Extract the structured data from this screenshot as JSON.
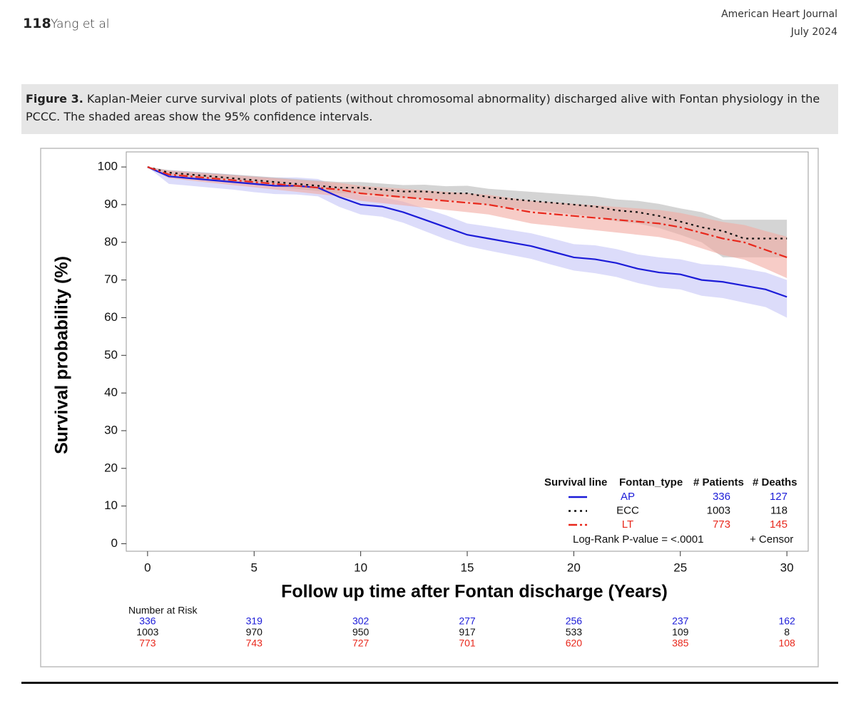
{
  "header": {
    "page_number": "118",
    "authors": "Yang et al",
    "journal": "American Heart Journal",
    "date": "July 2024"
  },
  "figure": {
    "label": "Figure 3.",
    "caption": "Kaplan-Meier curve survival plots of patients (without chromosomal abnormality) discharged alive with Fontan physiology in the PCCC. The shaded areas show the 95% confidence intervals."
  },
  "chart_data": {
    "type": "line",
    "xlabel": "Follow up time after Fontan discharge (Years)",
    "ylabel": "Survival probability (%)",
    "xlim": [
      -1,
      31
    ],
    "ylim": [
      -2,
      104
    ],
    "xticks": [
      0,
      5,
      10,
      15,
      20,
      25,
      30
    ],
    "yticks": [
      0,
      10,
      20,
      30,
      40,
      50,
      60,
      70,
      80,
      90,
      100
    ],
    "x": [
      0,
      1,
      2,
      3,
      4,
      5,
      6,
      7,
      8,
      9,
      10,
      11,
      12,
      13,
      14,
      15,
      16,
      17,
      18,
      19,
      20,
      21,
      22,
      23,
      24,
      25,
      26,
      27,
      28,
      29,
      30
    ],
    "legend_columns": [
      "Survival line",
      "Fontan_type",
      "# Patients",
      "# Deaths"
    ],
    "p_value_text": "Log-Rank P-value = <.0001",
    "censor_label": "+ Censor",
    "at_risk_title": "Number at Risk",
    "series": [
      {
        "name": "AP",
        "color": "#1c1cd8",
        "band_color": "#c4c4f6",
        "dash": "none",
        "patients": 336,
        "deaths": 127,
        "values": [
          100,
          97.5,
          97,
          96.5,
          96,
          95.5,
          95,
          95,
          94.5,
          92,
          90,
          89.5,
          88,
          86,
          84,
          82,
          81,
          80,
          79,
          77.5,
          76,
          75.5,
          74.5,
          73,
          72,
          71.5,
          70,
          69.5,
          68.5,
          67.5,
          65.5
        ],
        "upper": [
          100,
          99,
          98.8,
          98.4,
          98,
          97.5,
          97.2,
          97.2,
          96.8,
          94.5,
          92.5,
          92,
          90.8,
          89,
          87.2,
          85,
          84.2,
          83.3,
          82.4,
          81,
          79.5,
          79.2,
          78.2,
          76.8,
          76,
          75.5,
          74.2,
          73.8,
          73,
          72,
          70
        ],
        "lower": [
          100,
          95.5,
          95,
          94.5,
          94,
          93.3,
          92.8,
          92.7,
          92.2,
          89.4,
          87.4,
          86.8,
          85.2,
          83,
          80.8,
          79,
          77.8,
          76.7,
          75.6,
          74,
          72.5,
          71.8,
          70.8,
          69.2,
          68,
          67.5,
          65.8,
          65.2,
          64,
          62.8,
          60
        ],
        "at_risk": [
          336,
          319,
          302,
          277,
          256,
          237,
          162
        ]
      },
      {
        "name": "ECC",
        "color": "#111111",
        "band_color": "#b8b8b8",
        "dash": "3,5",
        "patients": 1003,
        "deaths": 118,
        "values": [
          100,
          98.5,
          98,
          97.5,
          97,
          96.5,
          96,
          95.5,
          95,
          94.5,
          94.5,
          94,
          93.5,
          93.5,
          93,
          93,
          92,
          91.5,
          91,
          90.5,
          90,
          89.5,
          88.5,
          88,
          87,
          85.5,
          84,
          83,
          81,
          81,
          81
        ],
        "upper": [
          100,
          99.2,
          98.8,
          98.4,
          98,
          97.6,
          97.2,
          96.8,
          96.4,
          96,
          96,
          95.6,
          95.2,
          95.3,
          94.9,
          95,
          94.2,
          93.8,
          93.4,
          93,
          92.6,
          92.2,
          91.4,
          91,
          90.2,
          89,
          88,
          86,
          86,
          86,
          86
        ],
        "lower": [
          100,
          97.8,
          97.2,
          96.6,
          96,
          95.4,
          94.8,
          94.2,
          93.6,
          93,
          93,
          92.4,
          91.8,
          91.7,
          91.1,
          91,
          89.8,
          89.2,
          88.6,
          88,
          87.4,
          86.8,
          85.6,
          85,
          83.8,
          82,
          80,
          76,
          76,
          76,
          76
        ],
        "at_risk": [
          1003,
          970,
          950,
          917,
          533,
          109,
          8
        ]
      },
      {
        "name": "LT",
        "color": "#e8281c",
        "band_color": "#f2aaa2",
        "dash": "12,4,3,4",
        "patients": 773,
        "deaths": 145,
        "values": [
          100,
          98,
          97.5,
          97,
          96.5,
          96,
          95.5,
          95,
          94.5,
          94,
          93,
          92.5,
          92,
          91.5,
          91,
          90.5,
          90,
          89,
          88,
          87.5,
          87,
          86.5,
          86,
          85.5,
          85,
          84,
          82.5,
          81,
          80,
          78,
          76
        ],
        "upper": [
          100,
          99,
          98.6,
          98.2,
          97.8,
          97.4,
          97,
          96.6,
          96.2,
          95.8,
          95,
          94.6,
          94.2,
          93.8,
          93.4,
          93,
          92.6,
          91.8,
          91,
          90.6,
          90.2,
          89.8,
          89.4,
          89,
          88.6,
          87.8,
          86.6,
          85.4,
          84.6,
          83,
          81.5
        ],
        "lower": [
          100,
          97,
          96.4,
          95.8,
          95.2,
          94.6,
          94,
          93.4,
          92.8,
          92.2,
          91,
          90.4,
          89.8,
          89.2,
          88.6,
          88,
          87.4,
          86.2,
          85,
          84.4,
          83.8,
          83.2,
          82.6,
          82,
          81.4,
          80.2,
          78.4,
          76.6,
          75.4,
          73,
          70.5
        ],
        "at_risk": [
          773,
          743,
          727,
          701,
          620,
          385,
          108
        ]
      }
    ]
  }
}
